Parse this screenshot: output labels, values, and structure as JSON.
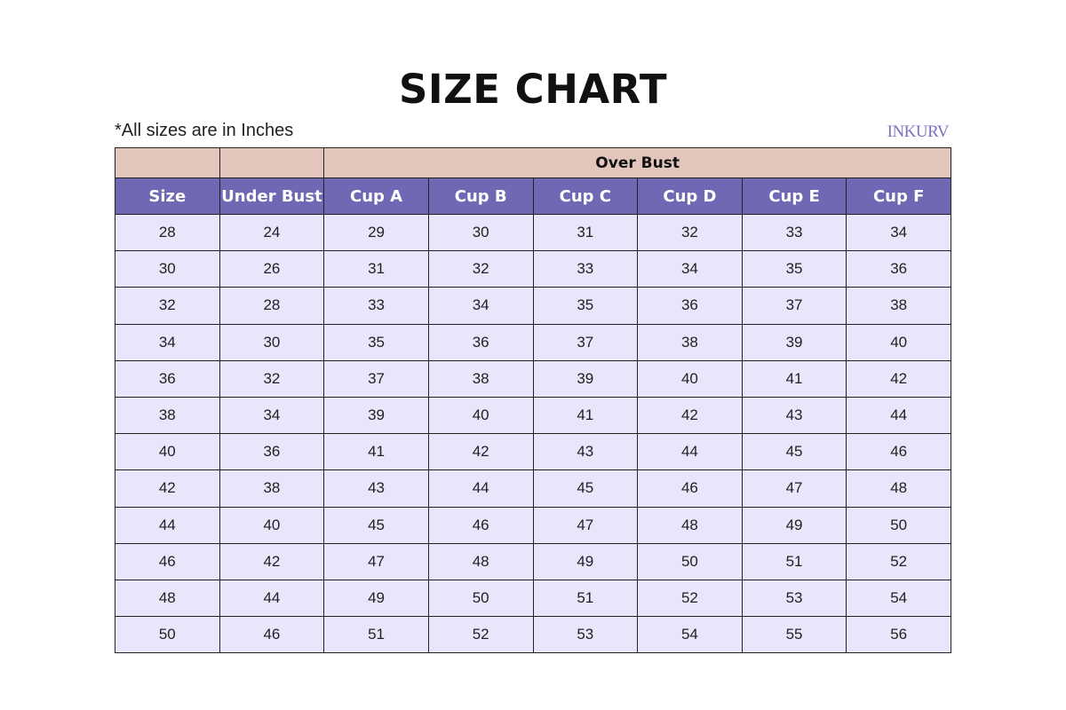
{
  "title": "SIZE CHART",
  "note": "*All sizes are in Inches",
  "logo": "INKURV",
  "colors": {
    "group_header": "#e2c6bc",
    "column_header": "#7068b4",
    "cell": "#e8e6fa"
  },
  "group_header": "Over Bust",
  "columns": [
    "Size",
    "Under Bust",
    "Cup A",
    "Cup B",
    "Cup C",
    "Cup D",
    "Cup E",
    "Cup F"
  ],
  "rows": [
    [
      "28",
      "24",
      "29",
      "30",
      "31",
      "32",
      "33",
      "34"
    ],
    [
      "30",
      "26",
      "31",
      "32",
      "33",
      "34",
      "35",
      "36"
    ],
    [
      "32",
      "28",
      "33",
      "34",
      "35",
      "36",
      "37",
      "38"
    ],
    [
      "34",
      "30",
      "35",
      "36",
      "37",
      "38",
      "39",
      "40"
    ],
    [
      "36",
      "32",
      "37",
      "38",
      "39",
      "40",
      "41",
      "42"
    ],
    [
      "38",
      "34",
      "39",
      "40",
      "41",
      "42",
      "43",
      "44"
    ],
    [
      "40",
      "36",
      "41",
      "42",
      "43",
      "44",
      "45",
      "46"
    ],
    [
      "42",
      "38",
      "43",
      "44",
      "45",
      "46",
      "47",
      "48"
    ],
    [
      "44",
      "40",
      "45",
      "46",
      "47",
      "48",
      "49",
      "50"
    ],
    [
      "46",
      "42",
      "47",
      "48",
      "49",
      "50",
      "51",
      "52"
    ],
    [
      "48",
      "44",
      "49",
      "50",
      "51",
      "52",
      "53",
      "54"
    ],
    [
      "50",
      "46",
      "51",
      "52",
      "53",
      "54",
      "55",
      "56"
    ]
  ]
}
